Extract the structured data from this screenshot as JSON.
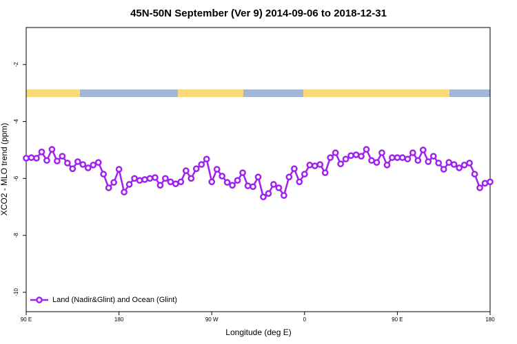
{
  "chart_data": {
    "type": "line",
    "title": "45N-50N September (Ver 9)   2014-09-06 to 2018-12-31",
    "xlabel": "Longitude (deg E)",
    "ylabel": "XCO2 - MLO trend (ppm)",
    "x": [
      90,
      95,
      100,
      105,
      110,
      115,
      120,
      125,
      130,
      135,
      140,
      145,
      150,
      155,
      160,
      165,
      170,
      175,
      180,
      185,
      190,
      195,
      200,
      205,
      210,
      215,
      220,
      225,
      230,
      235,
      240,
      245,
      250,
      255,
      260,
      265,
      270,
      275,
      280,
      285,
      290,
      295,
      300,
      305,
      310,
      315,
      320,
      325,
      330,
      335,
      340,
      345,
      350,
      355,
      360,
      365,
      370,
      375,
      380,
      385,
      390,
      395,
      400,
      405,
      410,
      415,
      420,
      425,
      430,
      435,
      440,
      445,
      450,
      455,
      460,
      465,
      470,
      475,
      480,
      485,
      490,
      495,
      500,
      505,
      510,
      515,
      520,
      525,
      530,
      535,
      540
    ],
    "series": [
      {
        "name": "Land (Nadir&Glint) and Ocean (Glint)",
        "color": "#a020f0",
        "values": [
          -5.29,
          -5.27,
          -5.29,
          -5.07,
          -5.37,
          -4.98,
          -5.39,
          -5.22,
          -5.46,
          -5.66,
          -5.41,
          -5.51,
          -5.63,
          -5.53,
          -5.44,
          -5.85,
          -6.33,
          -6.14,
          -5.68,
          -6.48,
          -6.21,
          -6.0,
          -6.07,
          -6.04,
          -6.0,
          -5.97,
          -6.24,
          -6.0,
          -6.12,
          -6.19,
          -6.12,
          -5.73,
          -6.0,
          -5.66,
          -5.51,
          -5.32,
          -6.12,
          -5.68,
          -5.92,
          -6.14,
          -6.24,
          -6.07,
          -5.8,
          -6.26,
          -6.29,
          -5.95,
          -6.65,
          -6.53,
          -6.21,
          -6.33,
          -6.6,
          -5.95,
          -5.66,
          -6.12,
          -5.85,
          -5.53,
          -5.56,
          -5.51,
          -5.8,
          -5.27,
          -5.1,
          -5.49,
          -5.32,
          -5.2,
          -5.17,
          -5.22,
          -4.98,
          -5.37,
          -5.44,
          -5.1,
          -5.53,
          -5.27,
          -5.27,
          -5.27,
          -5.32,
          -5.1,
          -5.37,
          -5.0,
          -5.41,
          -5.22,
          -5.46,
          -5.68,
          -5.44,
          -5.51,
          -5.63,
          -5.53,
          -5.46,
          -5.85,
          -6.33,
          -6.17,
          -6.12
        ]
      }
    ],
    "xlim": [
      90,
      540
    ],
    "xticks": [
      {
        "value": 90,
        "label": "90 E"
      },
      180,
      {
        "value": 270,
        "label": "90 W"
      },
      {
        "value": 360,
        "label": "0"
      },
      {
        "value": 450,
        "label": "90 E"
      },
      {
        "value": 540,
        "label": "180"
      }
    ],
    "ylim": [
      -10.68,
      -0.7
    ],
    "yticks": [
      -2,
      -4,
      -6,
      -8,
      -10
    ],
    "legend": "bottom-left"
  }
}
